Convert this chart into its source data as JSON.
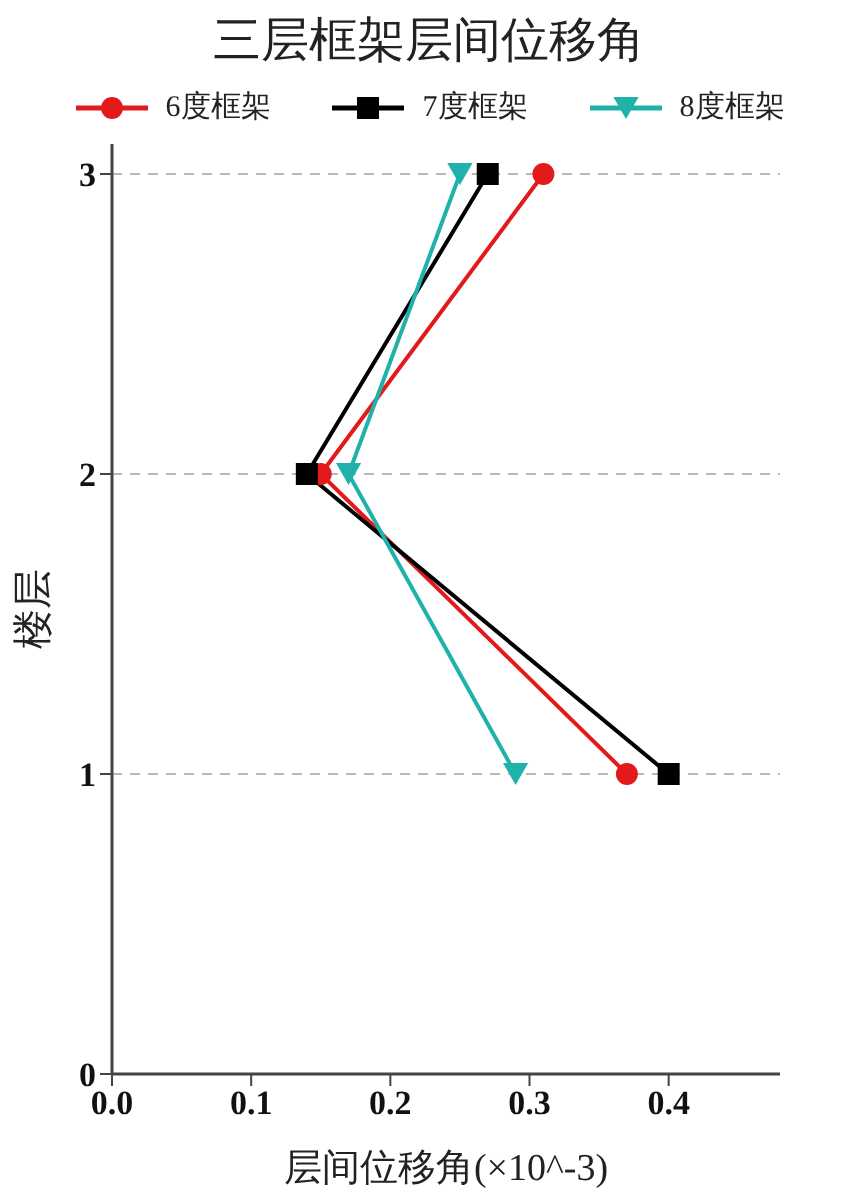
{
  "chart_data": {
    "type": "line",
    "title": "三层框架层间位移角",
    "xlabel": "层间位移角(×10^-3)",
    "ylabel": "楼层",
    "series": [
      {
        "name": "6度框架",
        "color": "#e31a1c",
        "marker": "circle",
        "x": [
          0.37,
          0.15,
          0.31
        ],
        "values": [
          1,
          2,
          3
        ]
      },
      {
        "name": "7度框架",
        "color": "#000000",
        "marker": "square",
        "x": [
          0.4,
          0.14,
          0.27
        ],
        "values": [
          1,
          2,
          3
        ]
      },
      {
        "name": "8度框架",
        "color": "#20b2aa",
        "marker": "triangle",
        "x": [
          0.29,
          0.17,
          0.25
        ],
        "values": [
          1,
          2,
          3
        ]
      }
    ],
    "xlim": [
      0,
      0.48
    ],
    "xticks": [
      {
        "value": 0,
        "label": "0.0"
      },
      0.1,
      0.2,
      0.3,
      0.4
    ],
    "ylim": [
      0,
      3.1
    ],
    "yticks": [
      0,
      1,
      2,
      3
    ],
    "grid": "y",
    "legend": "top",
    "line_style": "solid"
  }
}
